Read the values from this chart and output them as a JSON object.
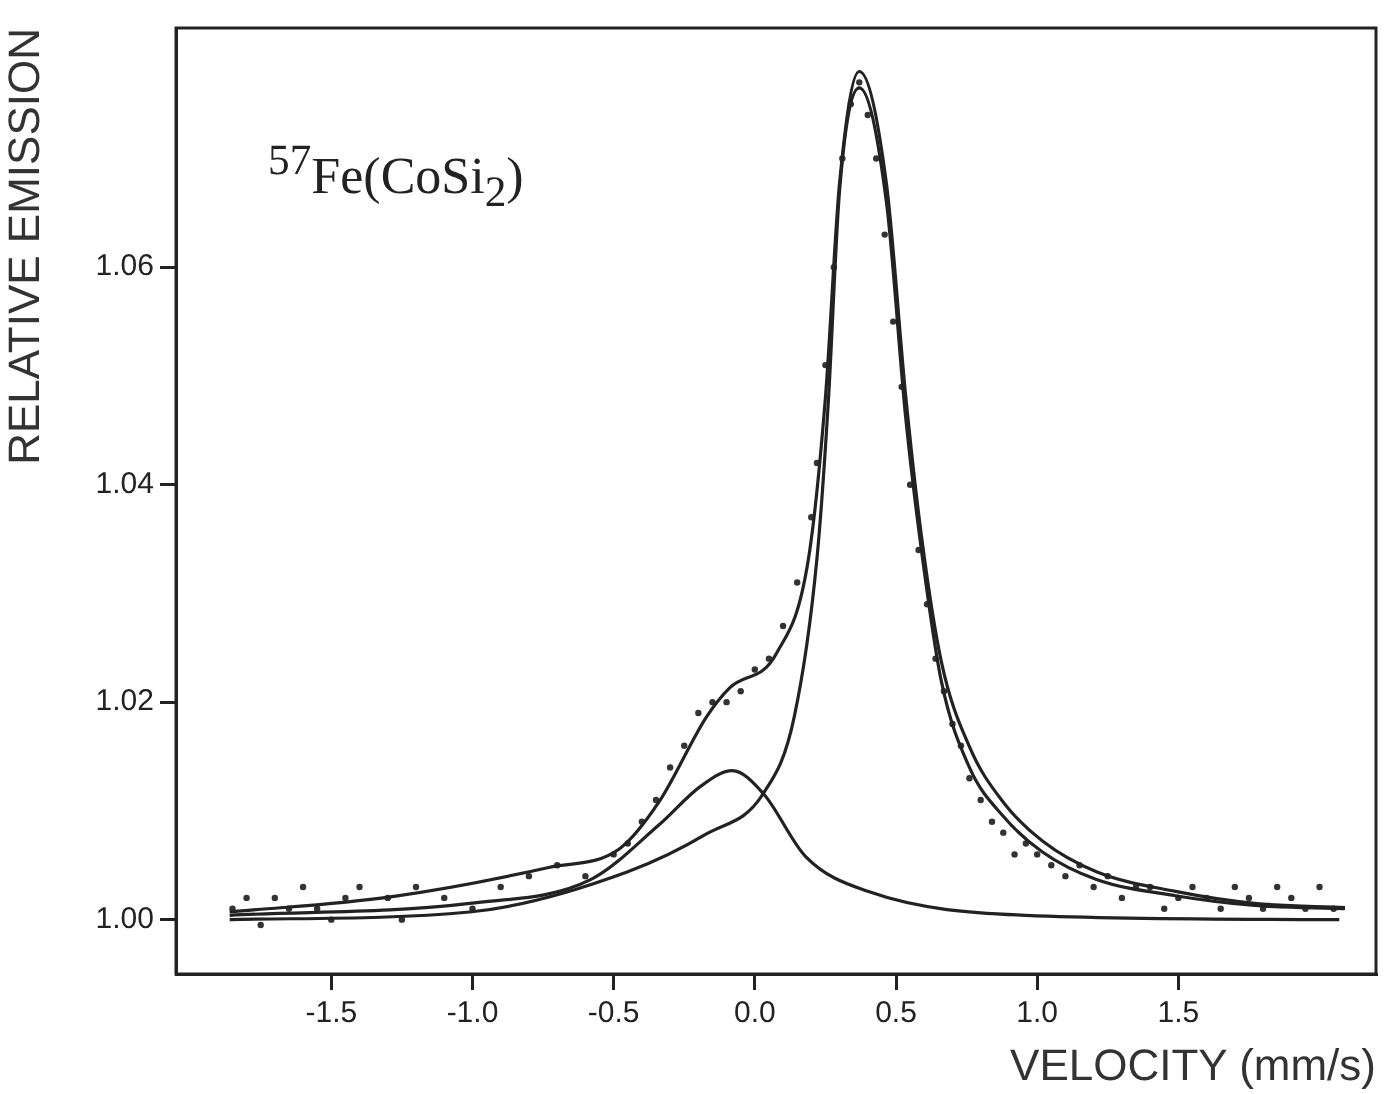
{
  "chart_data": {
    "type": "scatter",
    "xlabel": "VELOCITY (mm/s)",
    "ylabel": "RELATIVE EMISSION",
    "annotations": [
      {
        "text": "$^{57}$Fe(CoSi$_{2}$)"
      }
    ],
    "xlim": [
      -2.05,
      2.2
    ],
    "ylim": [
      0.995,
      1.082
    ],
    "xticks": [
      -1.5,
      {
        "value": -1,
        "label": "-1.0"
      },
      -0.5,
      {
        "value": 0,
        "label": "0.0"
      },
      0.5,
      {
        "value": 1,
        "label": "1.0"
      },
      1.5
    ],
    "yticks": [
      {
        "value": 1,
        "label": "1.00"
      },
      {
        "value": 1.02,
        "label": "1.02"
      },
      {
        "value": 1.04,
        "label": "1.04"
      },
      {
        "value": 1.06,
        "label": "1.06"
      }
    ],
    "grid": false,
    "legend": false,
    "series": [
      {
        "marker": "circle",
        "color": "#333333",
        "x": [
          -1.85,
          -1.8,
          -1.75,
          -1.7,
          -1.65,
          -1.6,
          -1.55,
          -1.5,
          -1.45,
          -1.4,
          -1.3,
          -1.25,
          -1.2,
          -1.1,
          -1.0,
          -0.9,
          -0.8,
          -0.7,
          -0.6,
          -0.5,
          -0.45,
          -0.4,
          -0.35,
          -0.3,
          -0.25,
          -0.2,
          -0.15,
          -0.1,
          -0.05,
          0.0,
          0.05,
          0.1,
          0.15,
          0.2,
          0.22,
          0.25,
          0.28,
          0.31,
          0.34,
          0.37,
          0.4,
          0.43,
          0.46,
          0.49,
          0.52,
          0.55,
          0.58,
          0.61,
          0.64,
          0.67,
          0.7,
          0.73,
          0.76,
          0.8,
          0.84,
          0.88,
          0.92,
          0.96,
          1.0,
          1.05,
          1.1,
          1.15,
          1.2,
          1.25,
          1.3,
          1.35,
          1.4,
          1.45,
          1.5,
          1.55,
          1.6,
          1.65,
          1.7,
          1.75,
          1.8,
          1.85,
          1.9,
          1.95,
          2.0,
          2.05
        ],
        "values": [
          1.001,
          1.002,
          0.9995,
          1.002,
          1.001,
          1.003,
          1.001,
          1.0,
          1.002,
          1.003,
          1.002,
          1.0,
          1.003,
          1.002,
          1.001,
          1.003,
          1.004,
          1.005,
          1.004,
          1.006,
          1.007,
          1.009,
          1.011,
          1.014,
          1.016,
          1.019,
          1.02,
          1.02,
          1.021,
          1.023,
          1.024,
          1.027,
          1.031,
          1.037,
          1.042,
          1.051,
          1.06,
          1.07,
          1.075,
          1.077,
          1.074,
          1.07,
          1.063,
          1.055,
          1.049,
          1.04,
          1.034,
          1.029,
          1.024,
          1.021,
          1.018,
          1.016,
          1.013,
          1.011,
          1.009,
          1.008,
          1.006,
          1.007,
          1.006,
          1.005,
          1.004,
          1.005,
          1.003,
          1.004,
          1.002,
          1.003,
          1.003,
          1.001,
          1.002,
          1.003,
          1.002,
          1.001,
          1.003,
          1.002,
          1.001,
          1.003,
          1.002,
          1.001,
          1.003,
          1.001
        ]
      },
      {
        "type": "line",
        "marker": "none",
        "color": "#222222",
        "x": [
          -1.86,
          -1.29,
          -0.73,
          -0.48,
          -0.34,
          -0.17,
          -0.09,
          0.077,
          0.19,
          0.25,
          0.3,
          0.37,
          0.466,
          0.535,
          0.59,
          0.66,
          0.76,
          0.88,
          1.02,
          1.21,
          1.49,
          1.77,
          2.09
        ],
        "values": [
          1.0007,
          1.0021,
          1.0048,
          1.0065,
          1.0108,
          1.0187,
          1.0213,
          1.0245,
          1.0332,
          1.048,
          1.0677,
          1.078,
          1.0677,
          1.048,
          1.0353,
          1.0238,
          1.0159,
          1.0108,
          1.0072,
          1.0044,
          1.0026,
          1.0015,
          1.0011
        ]
      },
      {
        "type": "line",
        "marker": "none",
        "color": "#222222",
        "x": [
          -1.86,
          -1.01,
          -0.45,
          -0.17,
          0.03,
          0.14,
          0.22,
          0.26,
          0.3,
          0.37,
          0.466,
          0.535,
          0.59,
          0.66,
          0.76,
          0.88,
          1.02,
          1.21,
          1.49,
          1.77,
          2.09
        ],
        "values": [
          1.0,
          1.0007,
          1.0044,
          1.0079,
          1.0116,
          1.0187,
          1.0332,
          1.0475,
          1.067,
          1.0765,
          1.066,
          1.046,
          1.034,
          1.022,
          1.014,
          1.0095,
          1.0062,
          1.0037,
          1.0022,
          1.0013,
          1.001
        ]
      },
      {
        "type": "line",
        "marker": "none",
        "color": "#222222",
        "x": [
          -1.86,
          -1.01,
          -0.58,
          -0.34,
          -0.19,
          -0.08,
          0.03,
          0.18,
          0.4,
          0.96,
          2.07
        ],
        "values": [
          1.0004,
          1.0015,
          1.0037,
          1.0087,
          1.0123,
          1.0137,
          1.0116,
          1.0058,
          1.0026,
          1.0004,
          1.0
        ]
      }
    ]
  }
}
